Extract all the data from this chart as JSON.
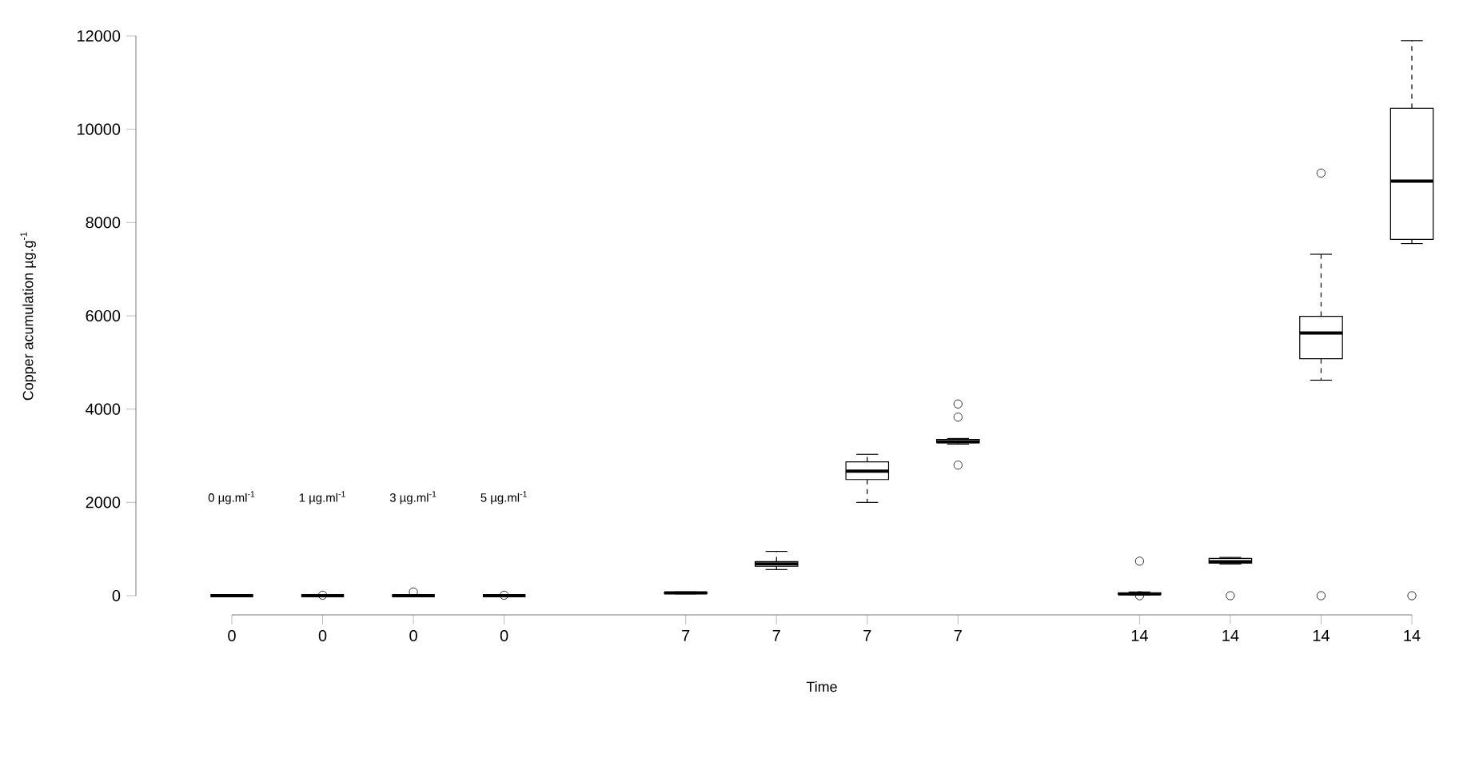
{
  "chart_data": {
    "type": "box",
    "xlabel": "Time",
    "ylabel": "Copper acumulation µg.g$^{-1}$",
    "categories": [
      "0",
      "0",
      "0",
      "0",
      null,
      "7",
      "7",
      "7",
      "7",
      null,
      "14",
      "14",
      "14",
      "14"
    ],
    "boxes": [
      {
        "low": 0,
        "q1": 0,
        "median": 0,
        "q3": 0,
        "high": 0
      },
      {
        "low": 0,
        "q1": 0,
        "median": 0,
        "q3": 0,
        "high": 0,
        "outliers": [
          10
        ]
      },
      {
        "low": 0,
        "q1": 0,
        "median": 0,
        "q3": 0,
        "high": 0,
        "outliers": [
          80
        ]
      },
      {
        "low": 0,
        "q1": 0,
        "median": 0,
        "q3": 0,
        "high": 0,
        "outliers": [
          10
        ]
      },
      null,
      {
        "low": 40,
        "q1": 50,
        "median": 60,
        "q3": 70,
        "high": 80
      },
      {
        "low": 560,
        "q1": 630,
        "median": 680,
        "q3": 730,
        "high": 950
      },
      {
        "low": 2000,
        "q1": 2490,
        "median": 2670,
        "q3": 2870,
        "high": 3030
      },
      {
        "low": 3250,
        "q1": 3280,
        "median": 3300,
        "q3": 3350,
        "high": 3370,
        "outliers": [
          4110,
          3830,
          2800
        ]
      },
      null,
      {
        "low": 20,
        "q1": 30,
        "median": 40,
        "q3": 60,
        "high": 80,
        "outliers": [
          740,
          0
        ]
      },
      {
        "low": 680,
        "q1": 700,
        "median": 730,
        "q3": 800,
        "high": 820,
        "outliers": [
          0
        ]
      },
      {
        "low": 4620,
        "q1": 5080,
        "median": 5630,
        "q3": 5990,
        "high": 7320,
        "outliers": [
          9060,
          0
        ]
      },
      {
        "low": 7550,
        "q1": 7640,
        "median": 8890,
        "q3": 10450,
        "high": 11900,
        "outliers": [
          0
        ]
      }
    ],
    "color": "#000000",
    "ylim": [
      0,
      12000
    ],
    "yticks": [
      0,
      2000,
      4000,
      6000,
      8000,
      10000,
      12000
    ],
    "marker": "circle",
    "annotations": [
      "0 µg.ml$^{-1}$",
      "1 µg.ml$^{-1}$",
      "3 µg.ml$^{-1}$",
      "5 µg.ml$^{-1}$"
    ]
  }
}
